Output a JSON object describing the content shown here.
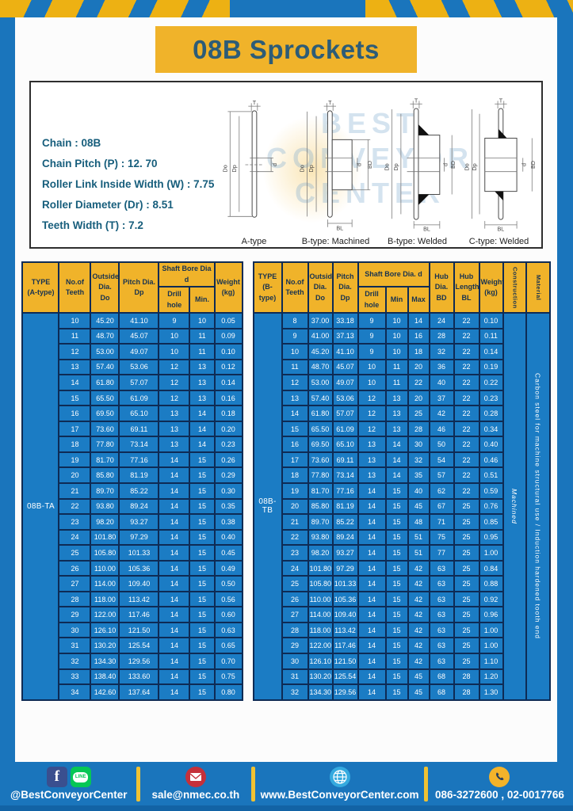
{
  "title": "08B Sprockets",
  "specs": [
    "Chain  : 08B",
    "Chain Pitch (P)  :  12. 70",
    "Roller Link Inside Width (W)  :  7.75",
    "Roller Diameter (Dr)  : 8.51",
    "Teeth Width (T)  :  7.2"
  ],
  "diagram": {
    "captions": [
      "A-type",
      "B-type: Machined",
      "B-type: Welded",
      "C-type: Welded"
    ],
    "dims": {
      "T": "T",
      "Do": "Do",
      "Dp": "Dp",
      "d": "d",
      "BD": "BD",
      "BL": "BL"
    },
    "watermark": [
      "BEST",
      "CONVEYOR",
      "CENTER"
    ]
  },
  "table_a": {
    "type_label": "08B-TA",
    "header": {
      "type": "TYPE\n(A-type)",
      "teeth": "No.of\nTeeth",
      "outside": "Outside\nDia.\nDo",
      "pitch": "Pitch Dia.\nDp",
      "shaft_bore": "Shaft Bore Dia d",
      "drill": "Drill hole",
      "min": "Min.",
      "weight": "Weight\n(kg)"
    },
    "rows": [
      [
        "10",
        "45.20",
        "41.10",
        "9",
        "10",
        "0.05"
      ],
      [
        "11",
        "48.70",
        "45.07",
        "10",
        "11",
        "0.09"
      ],
      [
        "12",
        "53.00",
        "49.07",
        "10",
        "11",
        "0.10"
      ],
      [
        "13",
        "57.40",
        "53.06",
        "12",
        "13",
        "0.12"
      ],
      [
        "14",
        "61.80",
        "57.07",
        "12",
        "13",
        "0.14"
      ],
      [
        "15",
        "65.50",
        "61.09",
        "12",
        "13",
        "0.16"
      ],
      [
        "16",
        "69.50",
        "65.10",
        "13",
        "14",
        "0.18"
      ],
      [
        "17",
        "73.60",
        "69.11",
        "13",
        "14",
        "0.20"
      ],
      [
        "18",
        "77.80",
        "73.14",
        "13",
        "14",
        "0.23"
      ],
      [
        "19",
        "81.70",
        "77.16",
        "14",
        "15",
        "0.26"
      ],
      [
        "20",
        "85.80",
        "81.19",
        "14",
        "15",
        "0.29"
      ],
      [
        "21",
        "89.70",
        "85.22",
        "14",
        "15",
        "0.30"
      ],
      [
        "22",
        "93.80",
        "89.24",
        "14",
        "15",
        "0.35"
      ],
      [
        "23",
        "98.20",
        "93.27",
        "14",
        "15",
        "0.38"
      ],
      [
        "24",
        "101.80",
        "97.29",
        "14",
        "15",
        "0.40"
      ],
      [
        "25",
        "105.80",
        "101.33",
        "14",
        "15",
        "0.45"
      ],
      [
        "26",
        "110.00",
        "105.36",
        "14",
        "15",
        "0.49"
      ],
      [
        "27",
        "114.00",
        "109.40",
        "14",
        "15",
        "0.50"
      ],
      [
        "28",
        "118.00",
        "113.42",
        "14",
        "15",
        "0.56"
      ],
      [
        "29",
        "122.00",
        "117.46",
        "14",
        "15",
        "0.60"
      ],
      [
        "30",
        "126.10",
        "121.50",
        "14",
        "15",
        "0.63"
      ],
      [
        "31",
        "130.20",
        "125.54",
        "14",
        "15",
        "0.65"
      ],
      [
        "32",
        "134.30",
        "129.56",
        "14",
        "15",
        "0.70"
      ],
      [
        "33",
        "138.40",
        "133.60",
        "14",
        "15",
        "0.75"
      ],
      [
        "34",
        "142.60",
        "137.64",
        "14",
        "15",
        "0.80"
      ]
    ]
  },
  "table_b": {
    "type_label": "08B-TB",
    "construction": "Machined",
    "material": "Carbon steel for machine structural use / Induction hardened tooth end",
    "header": {
      "type": "TYPE\n(B-type)",
      "teeth": "No.of\nTeeth",
      "outside": "Outside\nDia.\nDo",
      "pitch": "Pitch\nDia.\nDp",
      "shaft_bore": "Shaft Bore Dia. d",
      "drill": "Drill hole",
      "min": "Min",
      "max": "Max",
      "hub_dia": "Hub\nDia.\nBD",
      "hub_len": "Hub\nLength\nBL",
      "weight": "Weight\n(kg)",
      "construction": "Construction",
      "material": "Material"
    },
    "rows": [
      [
        "8",
        "37.00",
        "33.18",
        "9",
        "10",
        "14",
        "24",
        "22",
        "0.10"
      ],
      [
        "9",
        "41.00",
        "37.13",
        "9",
        "10",
        "16",
        "28",
        "22",
        "0.11"
      ],
      [
        "10",
        "45.20",
        "41.10",
        "9",
        "10",
        "18",
        "32",
        "22",
        "0.14"
      ],
      [
        "11",
        "48.70",
        "45.07",
        "10",
        "11",
        "20",
        "36",
        "22",
        "0.19"
      ],
      [
        "12",
        "53.00",
        "49.07",
        "10",
        "11",
        "22",
        "40",
        "22",
        "0.22"
      ],
      [
        "13",
        "57.40",
        "53.06",
        "12",
        "13",
        "20",
        "37",
        "22",
        "0.23"
      ],
      [
        "14",
        "61.80",
        "57.07",
        "12",
        "13",
        "25",
        "42",
        "22",
        "0.28"
      ],
      [
        "15",
        "65.50",
        "61.09",
        "12",
        "13",
        "28",
        "46",
        "22",
        "0.34"
      ],
      [
        "16",
        "69.50",
        "65.10",
        "13",
        "14",
        "30",
        "50",
        "22",
        "0.40"
      ],
      [
        "17",
        "73.60",
        "69.11",
        "13",
        "14",
        "32",
        "54",
        "22",
        "0.46"
      ],
      [
        "18",
        "77.80",
        "73.14",
        "13",
        "14",
        "35",
        "57",
        "22",
        "0.51"
      ],
      [
        "19",
        "81.70",
        "77.16",
        "14",
        "15",
        "40",
        "62",
        "22",
        "0.59"
      ],
      [
        "20",
        "85.80",
        "81.19",
        "14",
        "15",
        "45",
        "67",
        "25",
        "0.76"
      ],
      [
        "21",
        "89.70",
        "85.22",
        "14",
        "15",
        "48",
        "71",
        "25",
        "0.85"
      ],
      [
        "22",
        "93.80",
        "89.24",
        "14",
        "15",
        "51",
        "75",
        "25",
        "0.95"
      ],
      [
        "23",
        "98.20",
        "93.27",
        "14",
        "15",
        "51",
        "77",
        "25",
        "1.00"
      ],
      [
        "24",
        "101.80",
        "97.29",
        "14",
        "15",
        "42",
        "63",
        "25",
        "0.84"
      ],
      [
        "25",
        "105.80",
        "101.33",
        "14",
        "15",
        "42",
        "63",
        "25",
        "0.88"
      ],
      [
        "26",
        "110.00",
        "105.36",
        "14",
        "15",
        "42",
        "63",
        "25",
        "0.92"
      ],
      [
        "27",
        "114.00",
        "109.40",
        "14",
        "15",
        "42",
        "63",
        "25",
        "0.96"
      ],
      [
        "28",
        "118.00",
        "113.42",
        "14",
        "15",
        "42",
        "63",
        "25",
        "1.00"
      ],
      [
        "29",
        "122.00",
        "117.46",
        "14",
        "15",
        "42",
        "63",
        "25",
        "1.00"
      ],
      [
        "30",
        "126.10",
        "121.50",
        "14",
        "15",
        "42",
        "63",
        "25",
        "1.10"
      ],
      [
        "31",
        "130.20",
        "125.54",
        "14",
        "15",
        "45",
        "68",
        "28",
        "1.20"
      ],
      [
        "32",
        "134.30",
        "129.56",
        "14",
        "15",
        "45",
        "68",
        "28",
        "1.30"
      ]
    ]
  },
  "footer": {
    "social_text": "@BestConveyorCenter",
    "email": "sale@nmec.co.th",
    "website": "www.BestConveyorCenter.com",
    "phones": "086-3272600 , 02-0017766",
    "facebook_glyph": "f",
    "line_logo": "LINE"
  },
  "colors": {
    "frame_blue": "#1a75bc",
    "accent_yellow": "#f0b32a",
    "cell_blue": "#1b7cc4",
    "border_navy": "#0e2b55",
    "title_text": "#2d5c77",
    "footer_dark_strip": "#1263a5",
    "facebook_blue": "#3a4f8f",
    "line_green": "#06c755",
    "email_red": "#c5303a",
    "globe_blue": "#35aadf",
    "phone_yellow": "#f3b32a"
  }
}
